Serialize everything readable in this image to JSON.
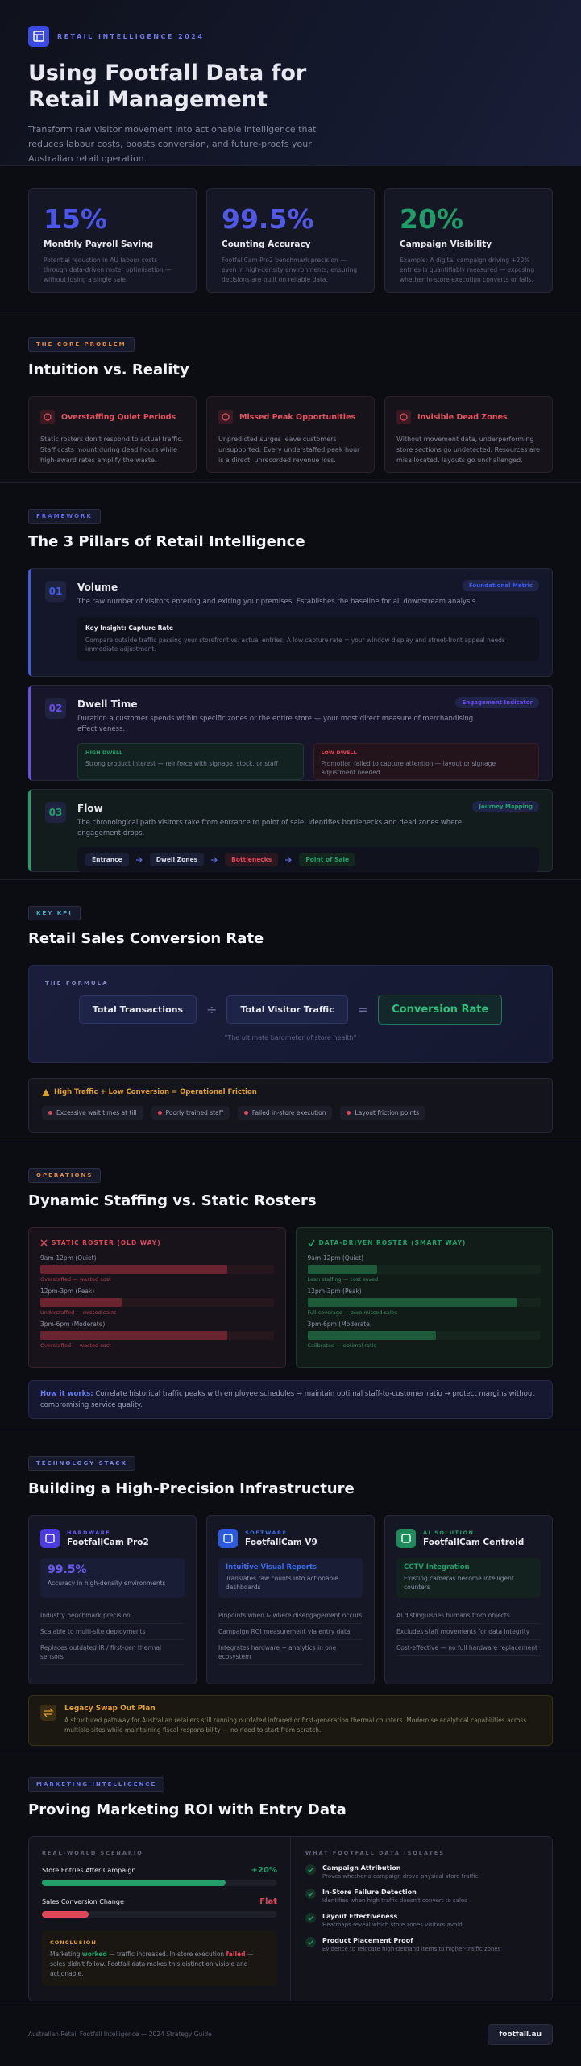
{
  "header": {
    "badge": "RETAIL INTELLIGENCE 2024",
    "title": "Using Footfall Data for Retail Management",
    "subtitle": "Transform raw visitor movement into actionable intelligence that reduces labour costs, boosts conversion, and future-proofs your Australian retail operation."
  },
  "stats": [
    {
      "value": "15%",
      "label": "Monthly Payroll Saving",
      "desc": "Potential reduction in AU labour costs through data-driven roster optimisation — without losing a single sale."
    },
    {
      "value": "99.5%",
      "label": "Counting Accuracy",
      "desc": "FootfallCam Pro2 benchmark precision — even in high-density environments, ensuring decisions are built on reliable data."
    },
    {
      "value": "20%",
      "label": "Campaign Visibility",
      "desc": "Example: A digital campaign driving +20% entries is quantifiably measured — exposing whether in-store execution converts or fails."
    }
  ],
  "problem": {
    "tag": "THE CORE PROBLEM",
    "title": "Intuition vs. Reality",
    "cards": [
      {
        "title": "Overstaffing Quiet Periods",
        "desc": "Static rosters don't respond to actual traffic. Staff costs mount during dead hours while high-award rates amplify the waste."
      },
      {
        "title": "Missed Peak Opportunities",
        "desc": "Unpredicted surges leave customers unsupported. Every understaffed peak hour is a direct, unrecorded revenue loss."
      },
      {
        "title": "Invisible Dead Zones",
        "desc": "Without movement data, underperforming store sections go undetected. Resources are misallocated, layouts go unchallenged."
      }
    ]
  },
  "pillars": {
    "tag": "FRAMEWORK",
    "title": "The 3 Pillars of Retail Intelligence",
    "items": [
      {
        "num": "01",
        "name": "Volume",
        "badge": "Foundational Metric",
        "desc": "The raw number of visitors entering and exiting your premises. Establishes the baseline for all downstream analysis.",
        "insight": {
          "title": "Key Insight: Capture Rate",
          "text": "Compare outside traffic passing your storefront vs. actual entries. A low capture rate = your window display and street-front appeal needs immediate adjustment."
        }
      },
      {
        "num": "02",
        "name": "Dwell Time",
        "badge": "Engagement Indicator",
        "desc": "Duration a customer spends within specific zones or the entire store — your most direct measure of merchandising effectiveness.",
        "dwell": [
          {
            "label": "HIGH DWELL",
            "text": "Strong product interest — reinforce with signage, stock, or staff"
          },
          {
            "label": "LOW DWELL",
            "text": "Promotion failed to capture attention — layout or signage adjustment needed"
          }
        ]
      },
      {
        "num": "03",
        "name": "Flow",
        "badge": "Journey Mapping",
        "desc": "The chronological path visitors take from entrance to point of sale. Identifies bottlenecks and dead zones where engagement drops.",
        "flow": [
          "Entrance",
          "Dwell Zones",
          "Bottlenecks",
          "Point of Sale"
        ]
      }
    ]
  },
  "kpi": {
    "tag": "KEY KPI",
    "title": "Retail Sales Conversion Rate",
    "formula_label": "THE FORMULA",
    "terms": [
      "Total Transactions",
      "Total Visitor Traffic"
    ],
    "operators": [
      "÷",
      "="
    ],
    "result": "Conversion Rate",
    "caption": "\"The ultimate barometer of store health\"",
    "alert": {
      "title": "High Traffic + Low Conversion = Operational Friction",
      "items": [
        "Excessive wait times at till",
        "Poorly trained staff",
        "Failed in-store execution",
        "Layout friction points"
      ]
    }
  },
  "staffing": {
    "tag": "OPERATIONS",
    "title": "Dynamic Staffing vs. Static Rosters",
    "rosters": [
      {
        "title": "STATIC ROSTER (OLD WAY)",
        "slots": [
          {
            "time": "9am-12pm (Quiet)",
            "level": 80,
            "note": "Overstaffed — wasted cost"
          },
          {
            "time": "12pm-3pm (Peak)",
            "level": 35,
            "note": "Understaffed — missed sales"
          },
          {
            "time": "3pm-6pm (Moderate)",
            "level": 80,
            "note": "Overstaffed — wasted cost"
          }
        ]
      },
      {
        "title": "DATA-DRIVEN ROSTER (SMART WAY)",
        "slots": [
          {
            "time": "9am-12pm (Quiet)",
            "level": 30,
            "note": "Lean staffing — cost saved"
          },
          {
            "time": "12pm-3pm (Peak)",
            "level": 90,
            "note": "Full coverage — zero missed sales"
          },
          {
            "time": "3pm-6pm (Moderate)",
            "level": 55,
            "note": "Calibrated — optimal ratio"
          }
        ]
      }
    ],
    "how": {
      "lead": "How it works:",
      "text": "Correlate historical traffic peaks with employee schedules → maintain optimal staff-to-customer ratio → protect margins without compromising service quality."
    }
  },
  "tech": {
    "tag": "TECHNOLOGY STACK",
    "title": "Building a High-Precision Infrastructure",
    "cards": [
      {
        "kind": "HARDWARE",
        "name": "FootfallCam Pro2",
        "highlight": {
          "title": "99.5%",
          "text": "Accuracy in high-density environments"
        },
        "points": [
          "Industry benchmark precision",
          "Scalable to multi-site deployments",
          "Replaces outdated IR / first-gen thermal sensors"
        ]
      },
      {
        "kind": "SOFTWARE",
        "name": "FootfallCam V9",
        "highlight": {
          "title": "Intuitive Visual Reports",
          "text": "Translates raw counts into actionable dashboards"
        },
        "points": [
          "Pinpoints when & where disengagement occurs",
          "Campaign ROI measurement via entry data",
          "Integrates hardware + analytics in one ecosystem"
        ]
      },
      {
        "kind": "AI SOLUTION",
        "name": "FootfallCam Centroid",
        "highlight": {
          "title": "CCTV Integration",
          "text": "Existing cameras become intelligent counters"
        },
        "points": [
          "AI distinguishes humans from objects",
          "Excludes staff movements for data integrity",
          "Cost-effective — no full hardware replacement"
        ]
      }
    ],
    "legacy": {
      "title": "Legacy Swap Out Plan",
      "text": "A structured pathway for Australian retailers still running outdated infrared or first-generation thermal counters. Modernise analytical capabilities across multiple sites while maintaining fiscal responsibility — no need to start from scratch."
    }
  },
  "marketing": {
    "tag": "MARKETING INTELLIGENCE",
    "title": "Proving Marketing ROI with Entry Data",
    "scenario": {
      "label": "REAL-WORLD SCENARIO",
      "rows": [
        {
          "label": "Store Entries After Campaign",
          "change": "+20%",
          "fill": 78
        },
        {
          "label": "Sales Conversion Change",
          "change": "Flat",
          "fill": 20
        }
      ],
      "conclusion": {
        "label": "CONCLUSION",
        "parts": [
          "Marketing ",
          "worked",
          " — traffic increased. In-store execution ",
          "failed",
          " — sales didn't follow. Footfall data makes this distinction visible and actionable."
        ]
      }
    },
    "isolates": {
      "label": "WHAT FOOTFALL DATA ISOLATES",
      "items": [
        {
          "title": "Campaign Attribution",
          "text": "Proves whether a campaign drove physical store traffic"
        },
        {
          "title": "In-Store Failure Detection",
          "text": "Identifies when high traffic doesn't convert to sales"
        },
        {
          "title": "Layout Effectiveness",
          "text": "Heatmaps reveal which store zones visitors avoid"
        },
        {
          "title": "Product Placement Proof",
          "text": "Evidence to relocate high-demand items to higher-traffic zones"
        }
      ]
    }
  },
  "footer": {
    "text": "Australian Retail Footfall Intelligence — 2024 Strategy Guide",
    "brand": "footfall.au"
  }
}
